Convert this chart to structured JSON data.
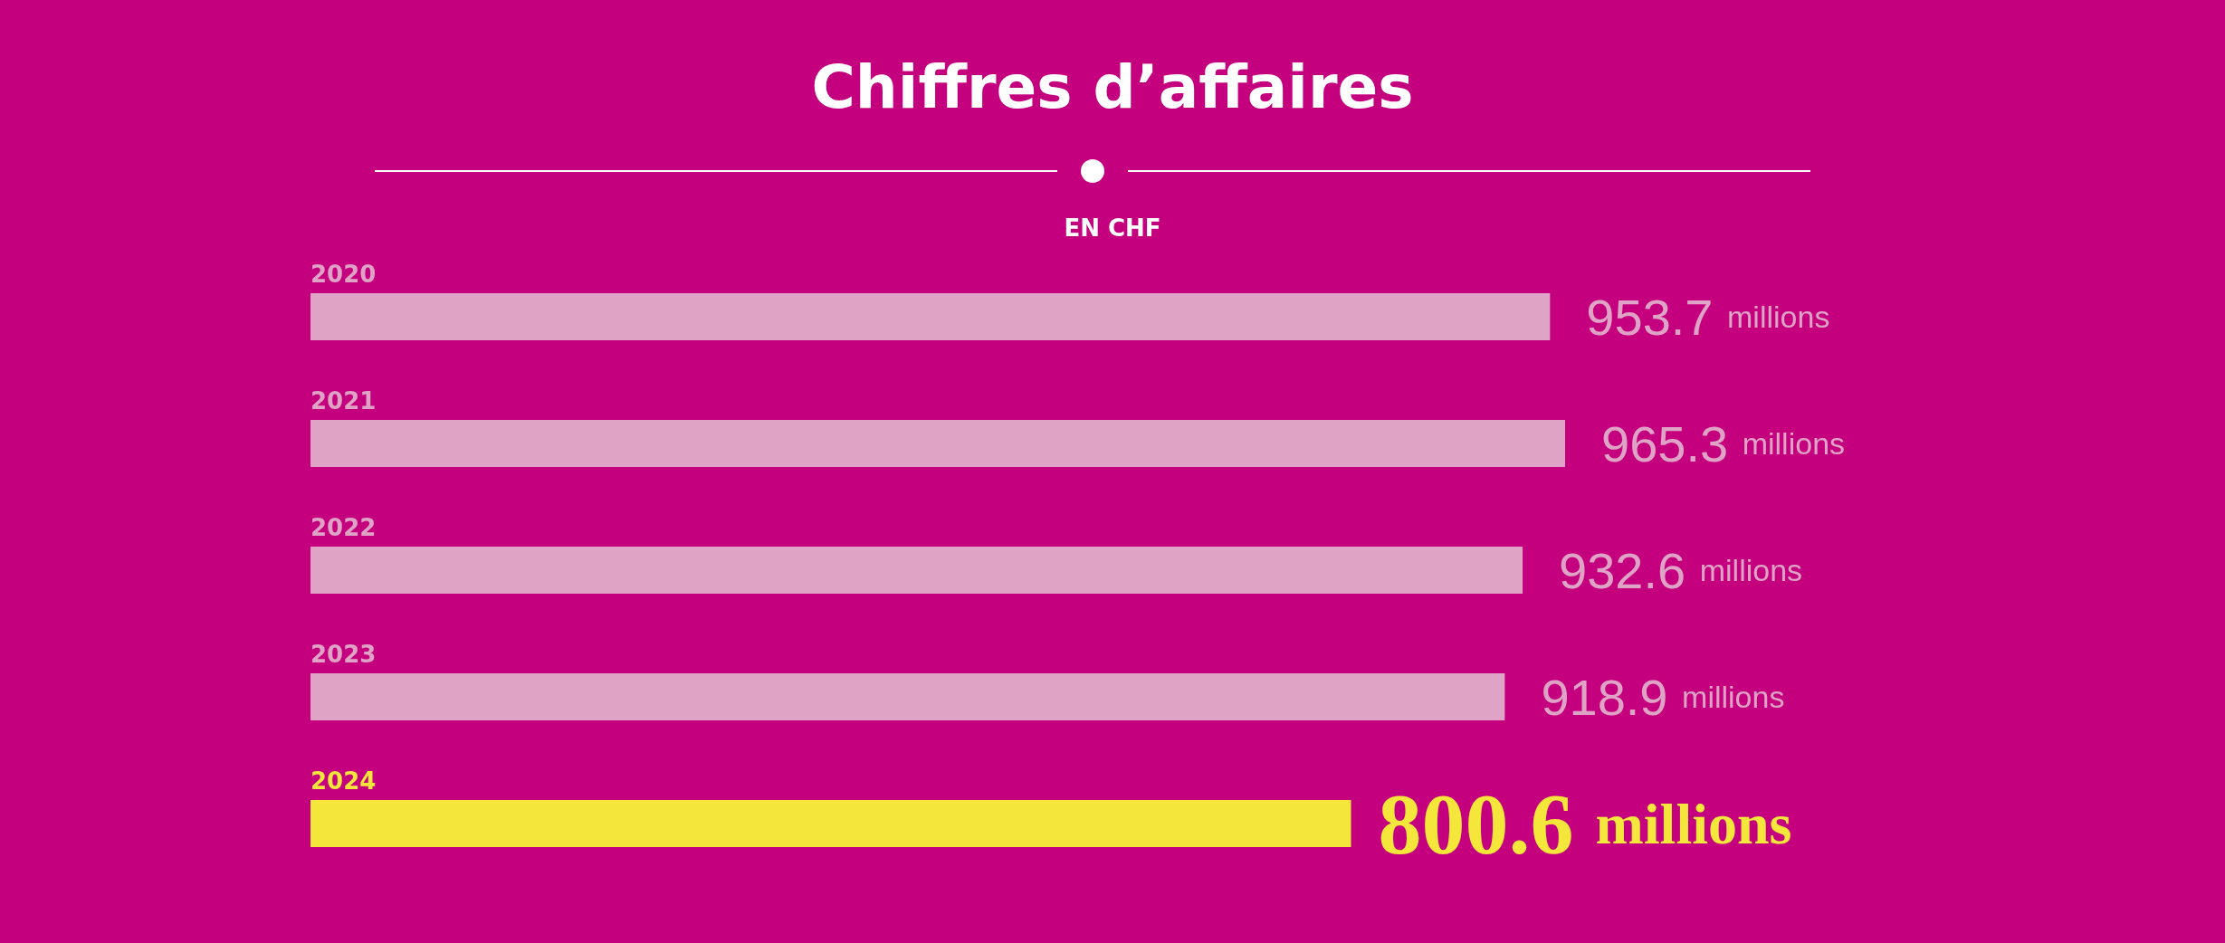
{
  "chart_data": {
    "type": "bar",
    "orientation": "horizontal",
    "title": "Chiffres d’affaires",
    "subtitle": "EN CHF",
    "categories": [
      "2020",
      "2021",
      "2022",
      "2023",
      "2024"
    ],
    "values": [
      953.7,
      965.3,
      932.6,
      918.9,
      800.6
    ],
    "colors": [
      "#dfa3c6",
      "#dfa3c6",
      "#dfa3c6",
      "#dfa3c6",
      "#f5e63b"
    ],
    "value_labels": [
      "953.7 millions",
      "965.3 millions",
      "932.6 millions",
      "918.9 millions",
      "800.6 millions"
    ]
  }
}
